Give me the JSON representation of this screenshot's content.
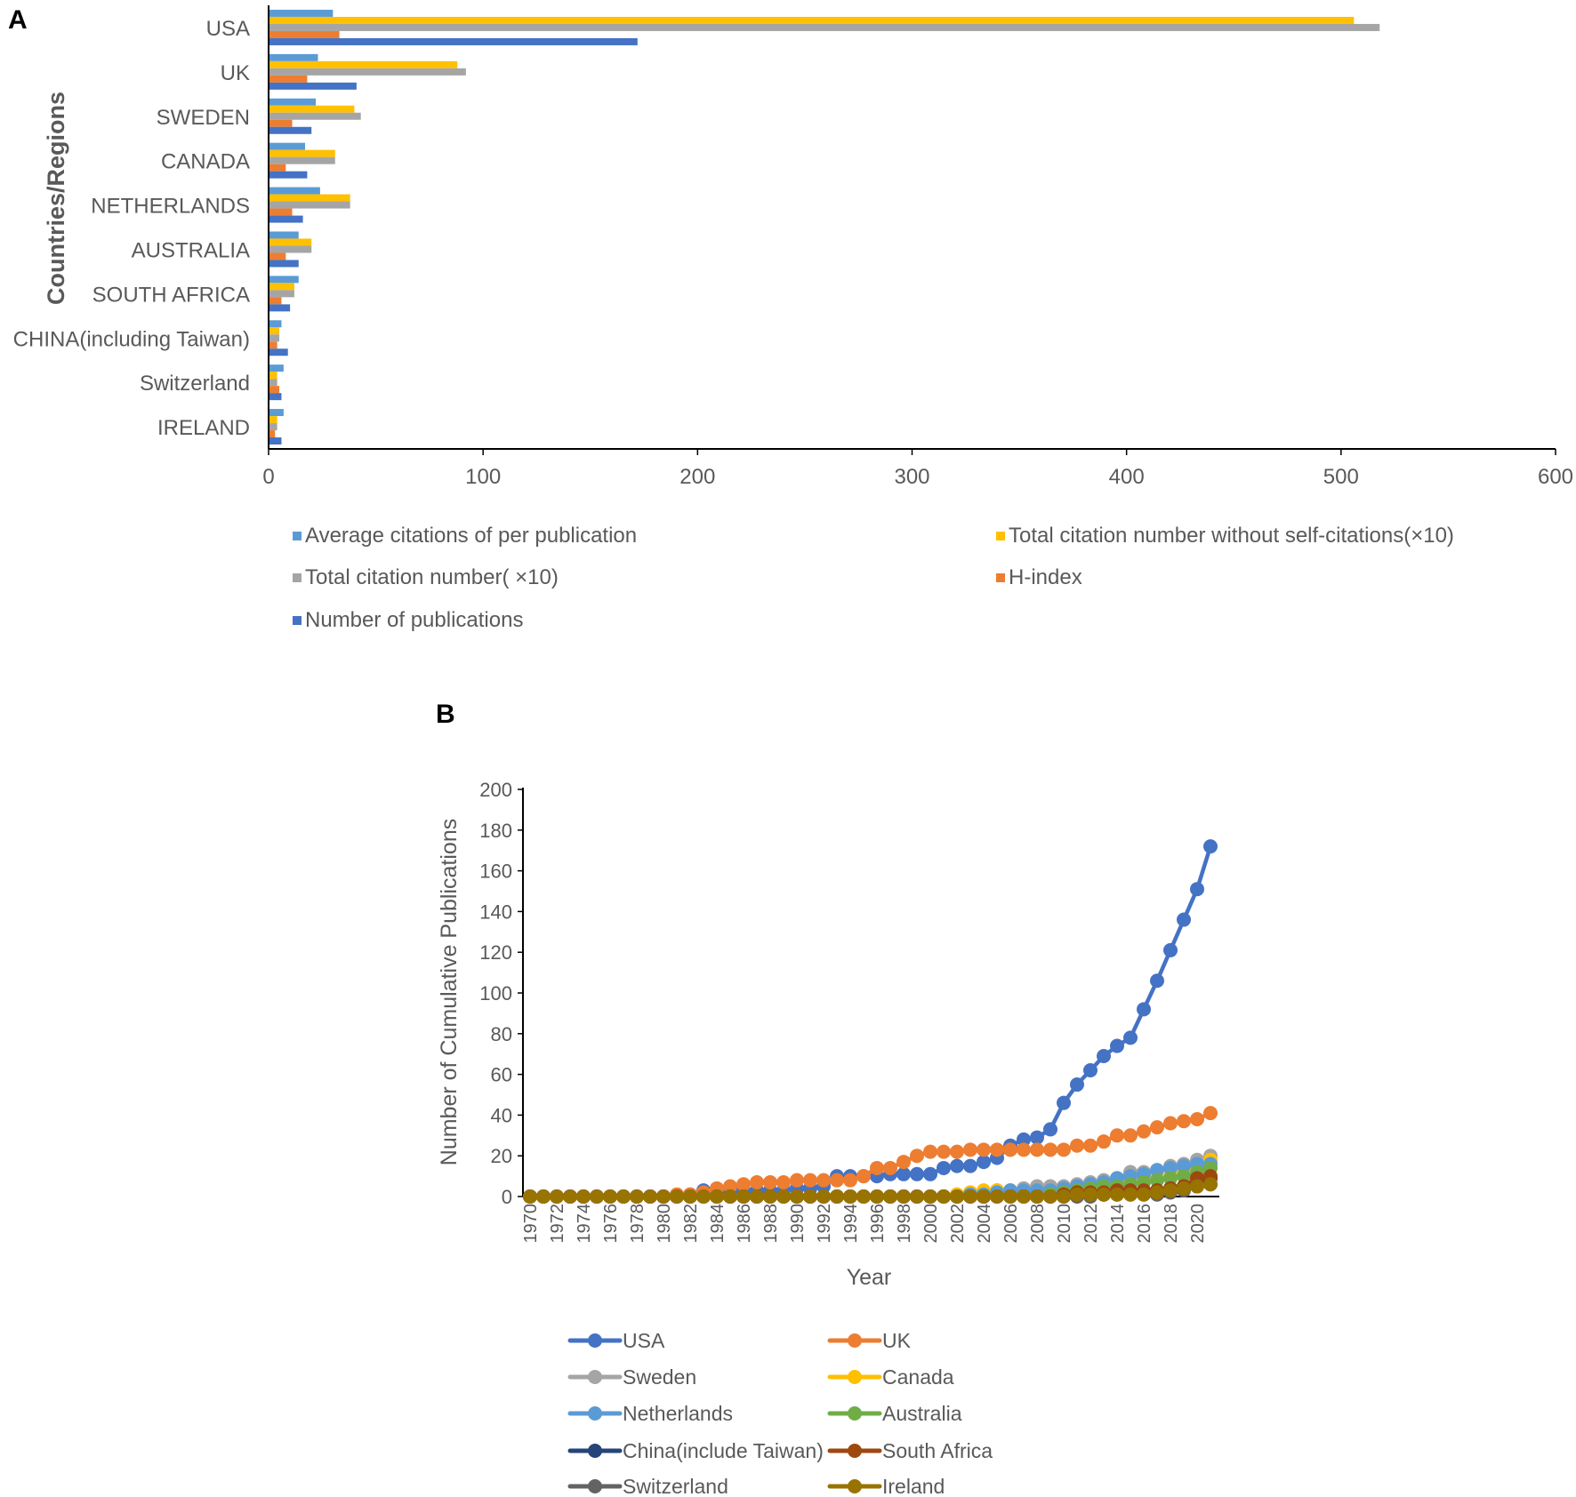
{
  "chart_data": [
    {
      "panel_label": "A",
      "type": "bar",
      "orientation": "horizontal",
      "ylabel": "Countries/Regions",
      "xlabel": "",
      "xlim": [
        0,
        600
      ],
      "xticks": [
        0,
        100,
        200,
        300,
        400,
        500,
        600
      ],
      "legend_position": "bottom",
      "categories": [
        "USA",
        "UK",
        "SWEDEN",
        "CANADA",
        "NETHERLANDS",
        "AUSTRALIA",
        "SOUTH AFRICA",
        "CHINA(including Taiwan)",
        "Switzerland",
        "IRELAND"
      ],
      "series": [
        {
          "name": "Average citations of per publication",
          "color": "#5B9BD5",
          "values": [
            30,
            23,
            22,
            17,
            24,
            14,
            14,
            6,
            7,
            7
          ]
        },
        {
          "name": "Total citation number without self-citations(×10)",
          "color": "#FFC000",
          "values": [
            506,
            88,
            40,
            31,
            38,
            20,
            12,
            5,
            4,
            4
          ]
        },
        {
          "name": "Total citation number( ×10)",
          "color": "#A5A5A5",
          "values": [
            518,
            92,
            43,
            31,
            38,
            20,
            12,
            5,
            4,
            4
          ]
        },
        {
          "name": "H-index",
          "color": "#ED7D31",
          "values": [
            33,
            18,
            11,
            8,
            11,
            8,
            6,
            4,
            5,
            3
          ]
        },
        {
          "name": "Number of publications",
          "color": "#4472C4",
          "values": [
            172,
            41,
            20,
            18,
            16,
            14,
            10,
            9,
            6,
            6
          ]
        }
      ]
    },
    {
      "panel_label": "B",
      "type": "line",
      "xlabel": "Year",
      "ylabel": "Number of Cumulative Publications",
      "ylim": [
        0,
        200
      ],
      "yticks": [
        0,
        20,
        40,
        60,
        80,
        100,
        120,
        140,
        160,
        180,
        200
      ],
      "xticks": [
        1970,
        1972,
        1974,
        1976,
        1978,
        1980,
        1982,
        1984,
        1986,
        1988,
        1990,
        1992,
        1994,
        1996,
        1998,
        2000,
        2002,
        2004,
        2006,
        2008,
        2010,
        2012,
        2014,
        2016,
        2018,
        2020
      ],
      "legend_position": "bottom",
      "x": [
        1970,
        1971,
        1972,
        1973,
        1974,
        1975,
        1976,
        1977,
        1978,
        1979,
        1980,
        1981,
        1982,
        1983,
        1984,
        1985,
        1986,
        1987,
        1988,
        1989,
        1990,
        1991,
        1992,
        1993,
        1994,
        1995,
        1996,
        1997,
        1998,
        1999,
        2000,
        2001,
        2002,
        2003,
        2004,
        2005,
        2006,
        2007,
        2008,
        2009,
        2010,
        2011,
        2012,
        2013,
        2014,
        2015,
        2016,
        2017,
        2018,
        2019,
        2020,
        2021
      ],
      "series": [
        {
          "name": "USA",
          "color": "#4472C4",
          "values": [
            0,
            0,
            0,
            0,
            0,
            0,
            0,
            0,
            0,
            0,
            0,
            0,
            1,
            3,
            3,
            3,
            3,
            3,
            3,
            3,
            4,
            4,
            5,
            10,
            10,
            10,
            10,
            11,
            11,
            11,
            11,
            14,
            15,
            15,
            17,
            19,
            25,
            28,
            29,
            33,
            46,
            55,
            62,
            69,
            74,
            78,
            92,
            106,
            121,
            136,
            151,
            172
          ]
        },
        {
          "name": "UK",
          "color": "#ED7D31",
          "values": [
            0,
            0,
            0,
            0,
            0,
            0,
            0,
            0,
            0,
            0,
            0,
            1,
            1,
            2,
            4,
            5,
            6,
            7,
            7,
            7,
            8,
            8,
            8,
            8,
            8,
            10,
            14,
            14,
            17,
            20,
            22,
            22,
            22,
            23,
            23,
            23,
            23,
            23,
            23,
            23,
            23,
            25,
            25,
            27,
            30,
            30,
            32,
            34,
            36,
            37,
            38,
            41
          ]
        },
        {
          "name": "Sweden",
          "color": "#A5A5A5",
          "values": [
            0,
            0,
            0,
            0,
            0,
            0,
            0,
            0,
            0,
            0,
            0,
            0,
            0,
            0,
            0,
            0,
            0,
            0,
            0,
            0,
            0,
            0,
            0,
            0,
            0,
            0,
            0,
            0,
            0,
            0,
            0,
            0,
            1,
            2,
            2,
            3,
            3,
            4,
            5,
            5,
            5,
            6,
            7,
            8,
            9,
            12,
            12,
            13,
            15,
            16,
            18,
            20
          ]
        },
        {
          "name": "Canada",
          "color": "#FFC000",
          "values": [
            0,
            0,
            0,
            0,
            0,
            0,
            0,
            0,
            0,
            0,
            0,
            0,
            0,
            0,
            0,
            0,
            0,
            0,
            0,
            0,
            0,
            0,
            0,
            0,
            0,
            0,
            0,
            0,
            0,
            0,
            0,
            0,
            1,
            2,
            3,
            3,
            3,
            3,
            3,
            3,
            3,
            4,
            5,
            5,
            6,
            7,
            8,
            9,
            10,
            12,
            14,
            18
          ]
        },
        {
          "name": "Netherlands",
          "color": "#5B9BD5",
          "values": [
            0,
            0,
            0,
            0,
            0,
            0,
            0,
            0,
            0,
            0,
            0,
            0,
            0,
            0,
            0,
            0,
            0,
            0,
            0,
            0,
            0,
            0,
            0,
            0,
            0,
            0,
            0,
            0,
            0,
            0,
            0,
            0,
            0,
            1,
            1,
            2,
            3,
            3,
            3,
            3,
            4,
            5,
            6,
            7,
            9,
            10,
            11,
            13,
            14,
            15,
            16,
            16
          ]
        },
        {
          "name": "Australia",
          "color": "#70AD47",
          "values": [
            0,
            0,
            0,
            0,
            0,
            0,
            0,
            0,
            0,
            0,
            0,
            0,
            0,
            0,
            0,
            0,
            0,
            0,
            0,
            0,
            0,
            0,
            0,
            0,
            0,
            0,
            0,
            0,
            0,
            0,
            0,
            0,
            0,
            0,
            0,
            0,
            0,
            0,
            0,
            1,
            2,
            3,
            4,
            5,
            5,
            6,
            7,
            8,
            9,
            10,
            12,
            14
          ]
        },
        {
          "name": "China(include Taiwan)",
          "color": "#264478",
          "values": [
            0,
            0,
            0,
            0,
            0,
            0,
            0,
            0,
            0,
            0,
            0,
            0,
            0,
            0,
            0,
            0,
            0,
            0,
            0,
            0,
            0,
            0,
            0,
            0,
            0,
            0,
            0,
            0,
            0,
            0,
            0,
            0,
            0,
            0,
            0,
            0,
            0,
            0,
            0,
            0,
            0,
            1,
            1,
            1,
            2,
            2,
            2,
            3,
            4,
            5,
            7,
            9
          ]
        },
        {
          "name": "South Africa",
          "color": "#9E480E",
          "values": [
            0,
            0,
            0,
            0,
            0,
            0,
            0,
            0,
            0,
            0,
            0,
            0,
            0,
            0,
            0,
            0,
            0,
            0,
            0,
            0,
            0,
            0,
            0,
            0,
            0,
            0,
            0,
            0,
            0,
            0,
            0,
            0,
            0,
            0,
            0,
            0,
            0,
            0,
            0,
            0,
            1,
            2,
            2,
            2,
            3,
            3,
            3,
            3,
            4,
            5,
            9,
            10
          ]
        },
        {
          "name": "Switzerland",
          "color": "#636363",
          "values": [
            0,
            0,
            0,
            0,
            0,
            0,
            0,
            0,
            0,
            0,
            0,
            0,
            0,
            0,
            0,
            0,
            0,
            0,
            0,
            0,
            0,
            0,
            0,
            0,
            0,
            0,
            0,
            0,
            0,
            0,
            0,
            0,
            0,
            0,
            0,
            0,
            0,
            0,
            0,
            0,
            0,
            0,
            0,
            1,
            1,
            1,
            1,
            1,
            2,
            3,
            5,
            6
          ]
        },
        {
          "name": "Ireland",
          "color": "#997300",
          "values": [
            0,
            0,
            0,
            0,
            0,
            0,
            0,
            0,
            0,
            0,
            0,
            0,
            0,
            0,
            0,
            0,
            0,
            0,
            0,
            0,
            0,
            0,
            0,
            0,
            0,
            0,
            0,
            0,
            0,
            0,
            0,
            0,
            0,
            0,
            0,
            0,
            0,
            0,
            0,
            0,
            0,
            1,
            1,
            1,
            1,
            1,
            1,
            2,
            3,
            4,
            5,
            6
          ]
        }
      ]
    }
  ]
}
